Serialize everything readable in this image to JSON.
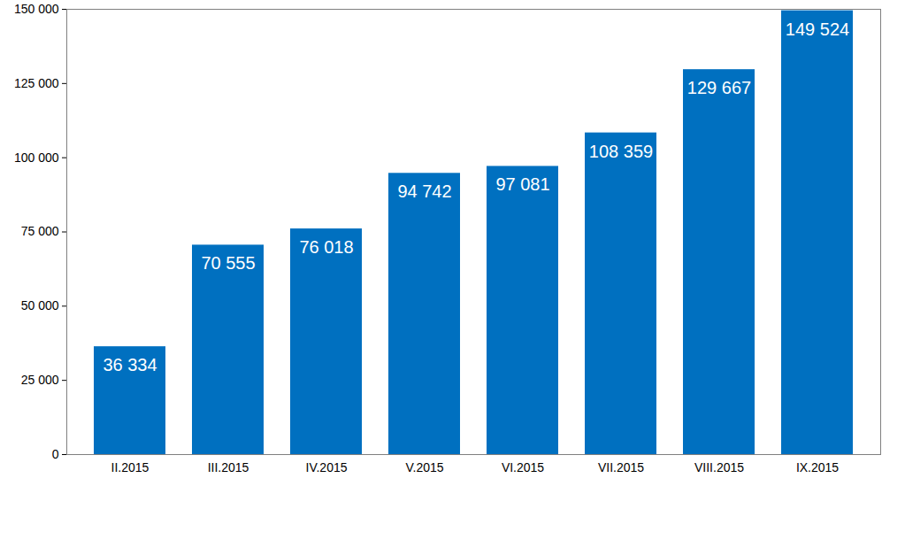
{
  "chart_data": {
    "type": "bar",
    "categories": [
      "II.2015",
      "III.2015",
      "IV.2015",
      "V.2015",
      "VI.2015",
      "VII.2015",
      "VIII.2015",
      "IX.2015"
    ],
    "values": [
      36334,
      70555,
      76018,
      94742,
      97081,
      108359,
      129667,
      149524
    ],
    "value_labels": [
      "36 334",
      "70 555",
      "76 018",
      "94 742",
      "97 081",
      "108 359",
      "129 667",
      "149 524"
    ],
    "data_labels": true,
    "color": "#0070c0",
    "ylim": [
      0,
      150000
    ],
    "yticks": [
      0,
      {
        "value": 25000,
        "label": "25 000"
      },
      {
        "value": 50000,
        "label": "50 000"
      },
      {
        "value": 75000,
        "label": "75 000"
      },
      {
        "value": 100000,
        "label": "100 000"
      },
      {
        "value": 125000,
        "label": "125 000"
      },
      {
        "value": 150000,
        "label": "150 000"
      }
    ],
    "grid": false
  }
}
